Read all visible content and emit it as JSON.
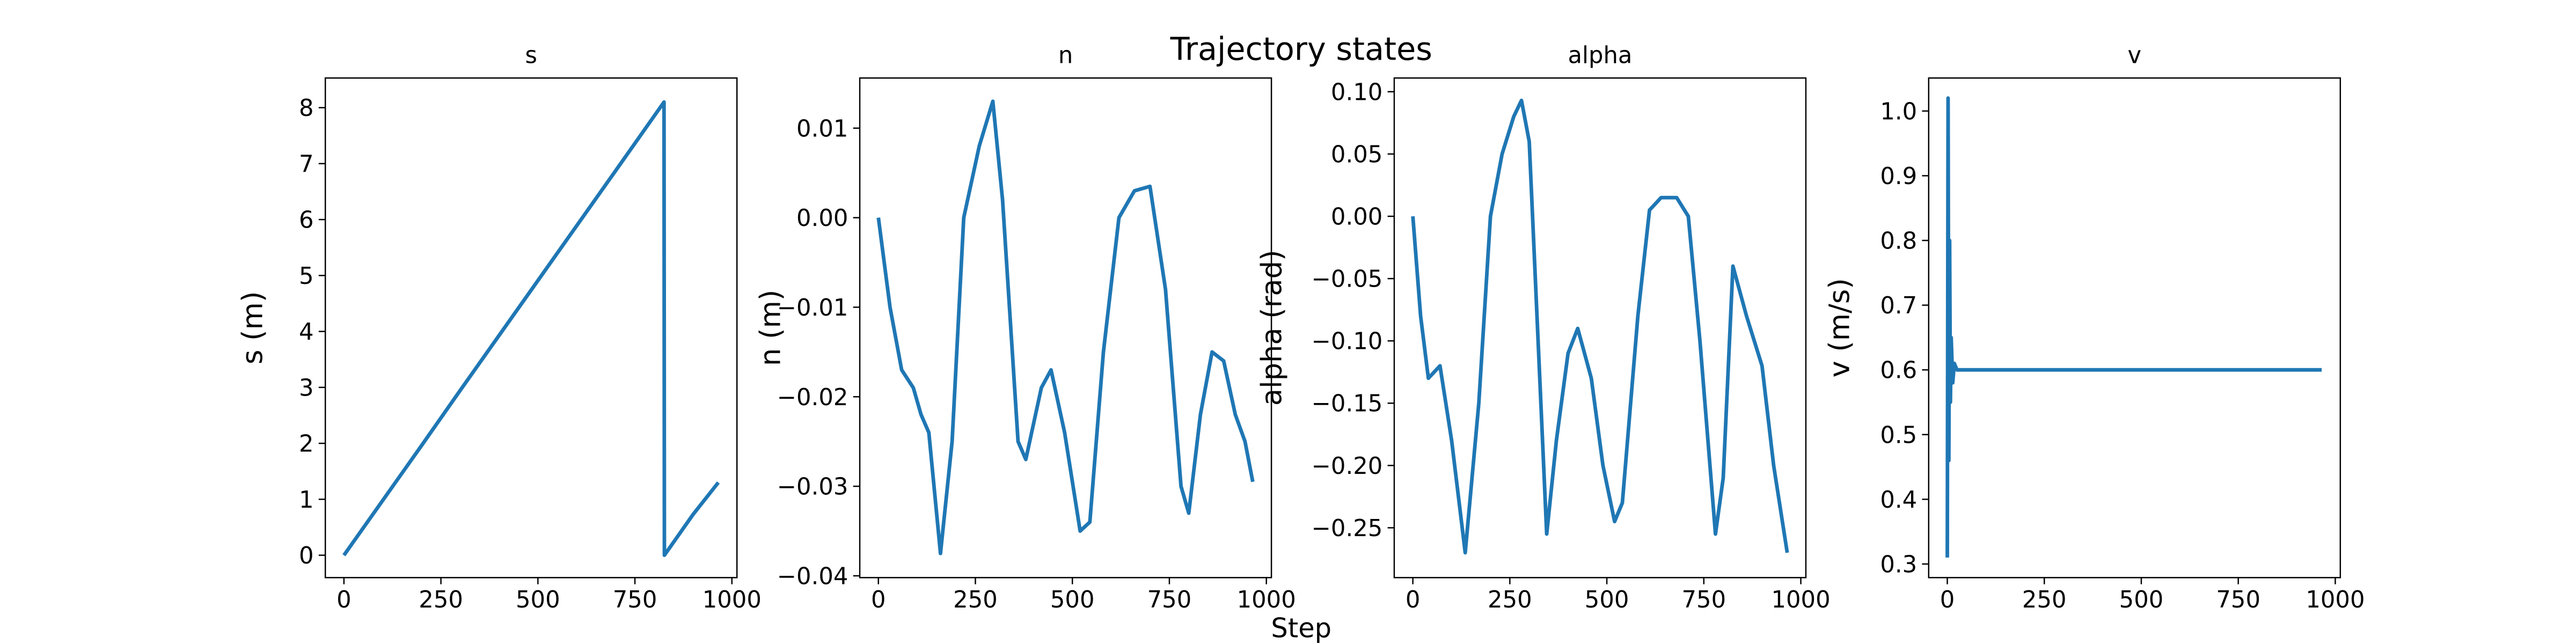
{
  "title": "Trajectory states",
  "xlabel": "Step",
  "chart_data": [
    {
      "type": "line",
      "title": "s",
      "ylabel": "s (m)",
      "color": "#1f77b4",
      "x": [
        0,
        100,
        200,
        300,
        400,
        500,
        600,
        700,
        825,
        826,
        900,
        965
      ],
      "values": [
        0,
        0.98,
        1.96,
        2.95,
        3.93,
        4.91,
        5.89,
        6.87,
        8.1,
        0,
        0.73,
        1.3
      ],
      "xlim": [
        -48,
        1013
      ],
      "xticks": [
        0,
        250,
        500,
        750,
        1000
      ],
      "ylim": [
        -0.4,
        8.53
      ],
      "yticks": [
        0,
        1,
        2,
        3,
        4,
        5,
        6,
        7,
        8
      ]
    },
    {
      "type": "line",
      "title": "n",
      "ylabel": "n (m)",
      "color": "#1f77b4",
      "x": [
        0,
        30,
        60,
        90,
        110,
        130,
        160,
        190,
        220,
        260,
        295,
        320,
        360,
        380,
        420,
        445,
        480,
        520,
        545,
        580,
        620,
        660,
        700,
        740,
        780,
        800,
        830,
        860,
        890,
        920,
        945,
        965
      ],
      "values": [
        0,
        -0.01,
        -0.017,
        -0.019,
        -0.022,
        -0.024,
        -0.0375,
        -0.025,
        0,
        0.008,
        0.013,
        0.002,
        -0.025,
        -0.027,
        -0.019,
        -0.017,
        -0.024,
        -0.035,
        -0.034,
        -0.015,
        0,
        0.003,
        0.0035,
        -0.008,
        -0.03,
        -0.033,
        -0.022,
        -0.015,
        -0.016,
        -0.022,
        -0.025,
        -0.0295
      ],
      "xlim": [
        -48,
        1013
      ],
      "xticks": [
        0,
        250,
        500,
        750,
        1000
      ],
      "ylim": [
        -0.0402,
        0.0156
      ],
      "yticks": [
        {
          "value": -0.04,
          "label": "−0.04"
        },
        {
          "value": -0.03,
          "label": "−0.03"
        },
        {
          "value": -0.02,
          "label": "−0.02"
        },
        {
          "value": -0.01,
          "label": "−0.01"
        },
        {
          "value": 0,
          "label": "0.00"
        },
        0.01
      ]
    },
    {
      "type": "line",
      "title": "alpha",
      "ylabel": "alpha (rad)",
      "color": "#1f77b4",
      "x": [
        0,
        20,
        40,
        70,
        100,
        135,
        170,
        200,
        230,
        260,
        280,
        300,
        330,
        345,
        370,
        400,
        425,
        460,
        490,
        520,
        540,
        580,
        610,
        640,
        680,
        710,
        740,
        780,
        800,
        825,
        860,
        900,
        930,
        965
      ],
      "values": [
        0,
        -0.08,
        -0.13,
        -0.12,
        -0.18,
        -0.27,
        -0.15,
        0,
        0.05,
        0.08,
        0.093,
        0.06,
        -0.15,
        -0.255,
        -0.18,
        -0.11,
        -0.09,
        -0.13,
        -0.2,
        -0.245,
        -0.23,
        -0.08,
        0.005,
        0.015,
        0.015,
        0,
        -0.1,
        -0.255,
        -0.21,
        -0.04,
        -0.08,
        -0.12,
        -0.2,
        -0.27
      ],
      "xlim": [
        -48,
        1013
      ],
      "xticks": [
        0,
        250,
        500,
        750,
        1000
      ],
      "ylim": [
        -0.29,
        0.111
      ],
      "yticks": [
        {
          "value": -0.25,
          "label": "−0.25"
        },
        {
          "value": -0.2,
          "label": "−0.20"
        },
        {
          "value": -0.15,
          "label": "−0.15"
        },
        {
          "value": -0.1,
          "label": "−0.10"
        },
        {
          "value": -0.05,
          "label": "−0.05"
        },
        {
          "value": 0,
          "label": "0.00"
        },
        0.05,
        {
          "value": 0.1,
          "label": "0.10"
        }
      ]
    },
    {
      "type": "line",
      "title": "v",
      "ylabel": "v (m/s)",
      "color": "#1f77b4",
      "x": [
        0,
        2,
        4,
        6,
        8,
        10,
        14,
        18,
        25,
        965
      ],
      "values": [
        0.31,
        1.02,
        0.46,
        0.8,
        0.55,
        0.65,
        0.58,
        0.61,
        0.6,
        0.6
      ],
      "xlim": [
        -48,
        1013
      ],
      "xticks": [
        0,
        250,
        500,
        750,
        1000
      ],
      "ylim": [
        0.279,
        1.051
      ],
      "yticks": [
        0.3,
        0.4,
        0.5,
        0.6,
        0.7,
        0.8,
        0.9,
        {
          "value": 1,
          "label": "1.0"
        }
      ]
    }
  ]
}
